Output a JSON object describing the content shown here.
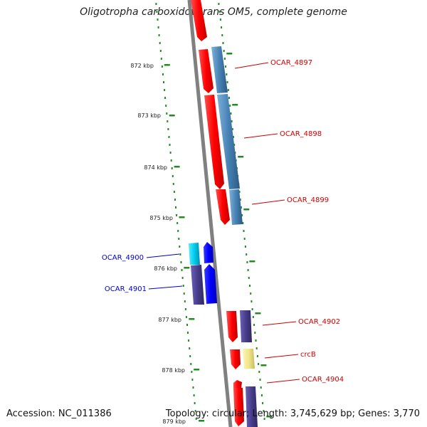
{
  "title": "Oligotropha carboxidovorans OM5, complete genome",
  "accession": "Accession: NC_011386",
  "topology": "Topology: circular; Length: 3,745,629 bp; Genes: 3,770",
  "colors": {
    "forward_gene": "#ff0000",
    "reverse_gene": "#0000ff",
    "cds_steelblue": "#4682b4",
    "cds_slate": "#483d8b",
    "cds_cyan": "#00ccee",
    "cds_khaki": "#f0e68c",
    "backbone": "#808080",
    "ticks": "#228b22",
    "label_red": "#cc0000",
    "label_blue": "#0000cc"
  },
  "scale_labels": [
    "872 kbp",
    "873 kbp",
    "874 kbp",
    "875 kbp",
    "876 kbp",
    "877 kbp",
    "878 kbp",
    "879 kbp"
  ],
  "genes": [
    {
      "id": "OCAR_4897",
      "strand": "+",
      "label_color": "#cc0000"
    },
    {
      "id": "OCAR_4898",
      "strand": "+",
      "label_color": "#cc0000"
    },
    {
      "id": "OCAR_4899",
      "strand": "+",
      "label_color": "#cc0000"
    },
    {
      "id": "OCAR_4900",
      "strand": "-",
      "label_color": "#0000cc"
    },
    {
      "id": "OCAR_4901",
      "strand": "-",
      "label_color": "#0000cc"
    },
    {
      "id": "OCAR_4902",
      "strand": "+",
      "label_color": "#cc0000"
    },
    {
      "id": "crcB",
      "strand": "+",
      "label_color": "#cc0000"
    },
    {
      "id": "OCAR_4904",
      "strand": "+",
      "label_color": "#cc0000"
    }
  ]
}
